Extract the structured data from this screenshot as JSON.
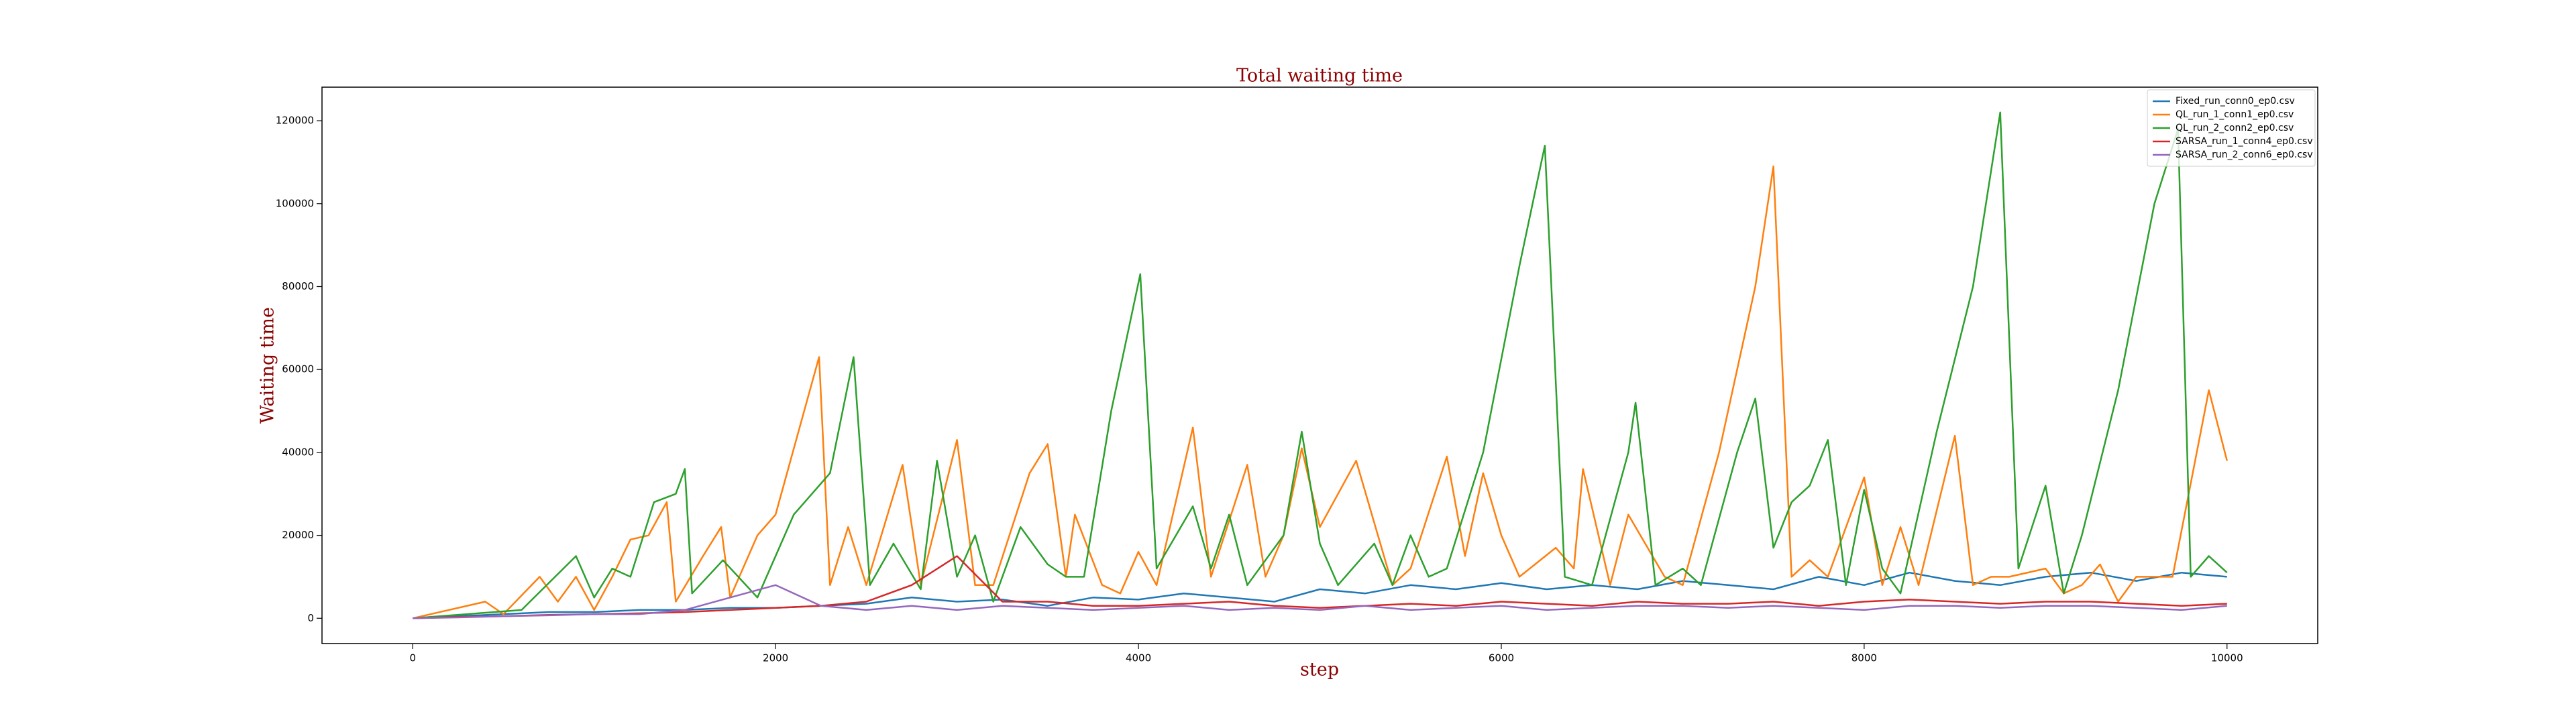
{
  "chart_data": {
    "type": "line",
    "title": "Total waiting time",
    "x_label": "step",
    "y_label": "Waiting time",
    "xlim": [
      -500,
      10500
    ],
    "ylim": [
      -6100,
      128100
    ],
    "xticks": [
      0,
      2000,
      4000,
      6000,
      8000,
      10000
    ],
    "yticks": [
      0,
      20000,
      40000,
      60000,
      80000,
      100000,
      120000
    ],
    "legend": "upper right",
    "series": [
      {
        "name": "Fixed_run_conn0_ep0.csv",
        "color": "#1f77b4",
        "x": [
          0,
          250,
          500,
          750,
          1000,
          1250,
          1500,
          1750,
          2000,
          2250,
          2500,
          2750,
          3000,
          3250,
          3500,
          3750,
          4000,
          4250,
          4500,
          4750,
          5000,
          5250,
          5500,
          5750,
          6000,
          6250,
          6500,
          6750,
          7000,
          7250,
          7500,
          7750,
          8000,
          8250,
          8500,
          8750,
          9000,
          9250,
          9500,
          9750,
          10000
        ],
        "values": [
          0,
          500,
          1000,
          1500,
          1500,
          2000,
          2000,
          2500,
          2500,
          3000,
          3500,
          5000,
          4000,
          4500,
          3000,
          5000,
          4500,
          6000,
          5000,
          4000,
          7000,
          6000,
          8000,
          7000,
          8500,
          7000,
          8000,
          7000,
          9000,
          8000,
          7000,
          10000,
          8000,
          11000,
          9000,
          8000,
          10000,
          11000,
          9000,
          11000,
          10000
        ]
      },
      {
        "name": "QL_run_1_conn1_ep0.csv",
        "color": "#ff7f0e",
        "x": [
          0,
          400,
          500,
          700,
          800,
          900,
          1000,
          1100,
          1200,
          1300,
          1400,
          1450,
          1600,
          1700,
          1750,
          1900,
          2000,
          2240,
          2300,
          2400,
          2500,
          2700,
          2800,
          3000,
          3100,
          3200,
          3400,
          3500,
          3600,
          3650,
          3800,
          3900,
          4000,
          4100,
          4300,
          4400,
          4600,
          4700,
          4800,
          4900,
          5000,
          5200,
          5400,
          5500,
          5700,
          5800,
          5900,
          6000,
          6100,
          6300,
          6400,
          6450,
          6600,
          6700,
          6900,
          7000,
          7200,
          7400,
          7500,
          7600,
          7700,
          7800,
          8000,
          8100,
          8200,
          8300,
          8500,
          8600,
          8700,
          8800,
          9000,
          9100,
          9200,
          9300,
          9400,
          9500,
          9700,
          9900,
          10000
        ],
        "values": [
          0,
          4000,
          1000,
          10000,
          4000,
          10000,
          2000,
          10000,
          19000,
          20000,
          28000,
          4000,
          15000,
          22000,
          5000,
          20000,
          25000,
          63000,
          8000,
          22000,
          8000,
          37000,
          8000,
          43000,
          8000,
          8000,
          35000,
          42000,
          10000,
          25000,
          8000,
          6000,
          16000,
          8000,
          46000,
          10000,
          37000,
          10000,
          20000,
          41000,
          22000,
          38000,
          8000,
          12000,
          39000,
          15000,
          35000,
          20000,
          10000,
          17000,
          12000,
          36000,
          8000,
          25000,
          10000,
          8000,
          40000,
          80000,
          109000,
          10000,
          14000,
          10000,
          34000,
          8000,
          22000,
          8000,
          44000,
          8000,
          10000,
          10000,
          12000,
          6000,
          8000,
          13000,
          4000,
          10000,
          10000,
          55000,
          38000
        ]
      },
      {
        "name": "QL_run_2_conn2_ep0.csv",
        "color": "#2ca02c",
        "x": [
          0,
          300,
          600,
          900,
          1000,
          1100,
          1200,
          1330,
          1450,
          1500,
          1540,
          1710,
          1900,
          2100,
          2300,
          2430,
          2520,
          2650,
          2800,
          2890,
          3000,
          3100,
          3200,
          3350,
          3500,
          3600,
          3700,
          3850,
          4010,
          4100,
          4300,
          4400,
          4500,
          4600,
          4800,
          4900,
          5000,
          5100,
          5300,
          5400,
          5500,
          5600,
          5700,
          5900,
          6100,
          6240,
          6350,
          6500,
          6700,
          6740,
          6850,
          7000,
          7100,
          7300,
          7400,
          7500,
          7600,
          7700,
          7800,
          7900,
          8000,
          8100,
          8200,
          8400,
          8600,
          8750,
          8850,
          9000,
          9100,
          9200,
          9400,
          9600,
          9730,
          9800,
          9900,
          10000
        ],
        "values": [
          0,
          1000,
          2000,
          15000,
          5000,
          12000,
          10000,
          28000,
          30000,
          36000,
          6000,
          14000,
          5000,
          25000,
          35000,
          63000,
          8000,
          18000,
          7000,
          38000,
          10000,
          20000,
          4000,
          22000,
          13000,
          10000,
          10000,
          50000,
          83000,
          12000,
          27000,
          12000,
          25000,
          8000,
          20000,
          45000,
          18000,
          8000,
          18000,
          8000,
          20000,
          10000,
          12000,
          40000,
          85000,
          114000,
          10000,
          8000,
          40000,
          52000,
          8000,
          12000,
          8000,
          40000,
          53000,
          17000,
          28000,
          32000,
          43000,
          8000,
          31000,
          12000,
          6000,
          45000,
          80000,
          122000,
          12000,
          32000,
          6000,
          20000,
          55000,
          100000,
          118000,
          10000,
          15000,
          11000
        ]
      },
      {
        "name": "SARSA_run_1_conn4_ep0.csv",
        "color": "#d62728",
        "x": [
          0,
          250,
          500,
          750,
          1000,
          1250,
          1500,
          1750,
          2000,
          2250,
          2500,
          2750,
          3000,
          3250,
          3500,
          3750,
          4000,
          4250,
          4500,
          4750,
          5000,
          5250,
          5500,
          5750,
          6000,
          6250,
          6500,
          6750,
          7000,
          7250,
          7500,
          7750,
          8000,
          8250,
          8500,
          8750,
          9000,
          9250,
          9500,
          9750,
          10000
        ],
        "values": [
          0,
          300,
          500,
          800,
          1000,
          1200,
          1500,
          2000,
          2500,
          3000,
          4000,
          8000,
          15000,
          4000,
          4000,
          3000,
          3000,
          3500,
          4000,
          3000,
          2500,
          3000,
          3500,
          3000,
          4000,
          3500,
          3000,
          4000,
          3500,
          3500,
          4000,
          3000,
          4000,
          4500,
          4000,
          3500,
          4000,
          4000,
          3500,
          3000,
          3500
        ]
      },
      {
        "name": "SARSA_run_2_conn6_ep0.csv",
        "color": "#9467bd",
        "x": [
          0,
          250,
          500,
          750,
          1000,
          1250,
          1500,
          1750,
          2000,
          2250,
          2500,
          2750,
          3000,
          3250,
          3500,
          3750,
          4000,
          4250,
          4500,
          4750,
          5000,
          5250,
          5500,
          5750,
          6000,
          6250,
          6500,
          6750,
          7000,
          7250,
          7500,
          7750,
          8000,
          8250,
          8500,
          8750,
          9000,
          9250,
          9500,
          9750,
          10000
        ],
        "values": [
          0,
          200,
          500,
          700,
          1000,
          1000,
          2000,
          5000,
          8000,
          3000,
          2000,
          3000,
          2000,
          3000,
          2500,
          2000,
          2500,
          3000,
          2000,
          2500,
          2000,
          3000,
          2000,
          2500,
          3000,
          2000,
          2500,
          3000,
          3000,
          2500,
          3000,
          2500,
          2000,
          3000,
          3000,
          2500,
          3000,
          3000,
          2500,
          2000,
          3000
        ]
      }
    ]
  }
}
